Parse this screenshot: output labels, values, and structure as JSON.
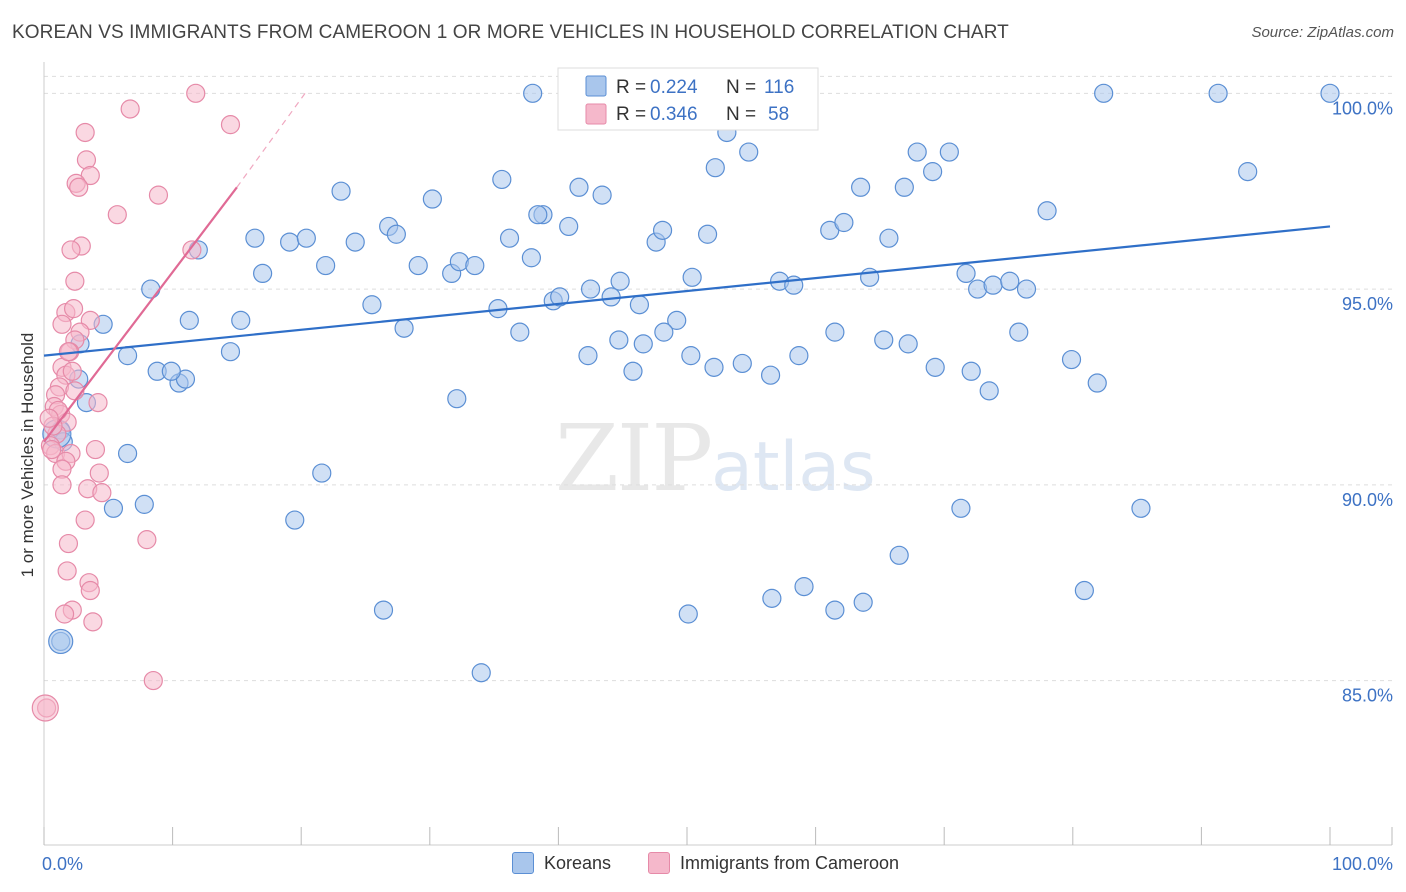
{
  "title": "KOREAN VS IMMIGRANTS FROM CAMEROON 1 OR MORE VEHICLES IN HOUSEHOLD CORRELATION CHART",
  "source": "Source: ZipAtlas.com",
  "watermark": {
    "zip": "ZIP",
    "atlas": "atlas"
  },
  "colors": {
    "blue_fill": "#a9c6ec",
    "blue_stroke": "#5b8fd4",
    "blue_line": "#2f6fc8",
    "pink_fill": "#f5b8cb",
    "pink_stroke": "#e68aa8",
    "pink_line": "#e06a95",
    "tick_text": "#3d72c4",
    "grid": "#dddddd"
  },
  "legend": {
    "rows": [
      {
        "r_label": "R =",
        "r_value": "0.224",
        "n_label": "N =",
        "n_value": "116"
      },
      {
        "r_label": "R =",
        "r_value": "0.346",
        "n_label": "N =",
        "n_value": "58"
      }
    ]
  },
  "bottom_legend": {
    "koreans": "Koreans",
    "cameroon": "Immigrants from Cameroon"
  },
  "chart_data": {
    "type": "scatter",
    "xlabel": "",
    "ylabel": "1 or more Vehicles in Household",
    "xlim": [
      0,
      100
    ],
    "ylim": [
      80.8,
      100.8
    ],
    "x_tick_labels": [
      "0.0%",
      "100.0%"
    ],
    "y_ticks": [
      85,
      90,
      95,
      100
    ],
    "y_tick_labels": [
      "85.0%",
      "90.0%",
      "95.0%",
      "100.0%"
    ],
    "grid": true,
    "series": [
      {
        "name": "Koreans",
        "color": "#a9c6ec",
        "trend": {
          "x0": 0,
          "y0": 93.3,
          "x1": 100,
          "y1": 96.6
        },
        "points": [
          [
            34,
            85.2
          ],
          [
            12,
            96.0
          ],
          [
            1.3,
            86.0
          ],
          [
            7.8,
            89.5
          ],
          [
            19.5,
            89.1
          ],
          [
            26.4,
            86.8
          ],
          [
            21.6,
            90.3
          ],
          [
            5.4,
            89.4
          ],
          [
            6.5,
            90.8
          ],
          [
            2.7,
            92.7
          ],
          [
            3.3,
            92.1
          ],
          [
            1.3,
            91.4
          ],
          [
            2.8,
            93.6
          ],
          [
            1.5,
            91.1
          ],
          [
            4.6,
            94.1
          ],
          [
            6.5,
            93.3
          ],
          [
            8.3,
            95.0
          ],
          [
            8.8,
            92.9
          ],
          [
            11.3,
            94.2
          ],
          [
            10.5,
            92.6
          ],
          [
            11.0,
            92.7
          ],
          [
            9.9,
            92.9
          ],
          [
            14.5,
            93.4
          ],
          [
            15.3,
            94.2
          ],
          [
            16.4,
            96.3
          ],
          [
            17.0,
            95.4
          ],
          [
            19.1,
            96.2
          ],
          [
            20.4,
            96.3
          ],
          [
            21.9,
            95.6
          ],
          [
            23.1,
            97.5
          ],
          [
            24.2,
            96.2
          ],
          [
            25.5,
            94.6
          ],
          [
            26.8,
            96.6
          ],
          [
            27.4,
            96.4
          ],
          [
            28.0,
            94.0
          ],
          [
            29.1,
            95.6
          ],
          [
            30.2,
            97.3
          ],
          [
            31.7,
            95.4
          ],
          [
            32.3,
            95.7
          ],
          [
            33.5,
            95.6
          ],
          [
            35.3,
            94.5
          ],
          [
            36.2,
            96.3
          ],
          [
            37.0,
            93.9
          ],
          [
            37.9,
            95.8
          ],
          [
            38.8,
            96.9
          ],
          [
            39.6,
            94.7
          ],
          [
            40.8,
            96.6
          ],
          [
            41.6,
            97.6
          ],
          [
            42.5,
            95.0
          ],
          [
            43.4,
            97.4
          ],
          [
            44.1,
            94.8
          ],
          [
            44.8,
            95.2
          ],
          [
            46.3,
            94.6
          ],
          [
            47.6,
            96.2
          ],
          [
            48.1,
            96.5
          ],
          [
            49.2,
            94.2
          ],
          [
            50.4,
            95.3
          ],
          [
            51.6,
            96.4
          ],
          [
            52.2,
            98.1
          ],
          [
            53.1,
            99.0
          ],
          [
            54.8,
            98.5
          ],
          [
            57.2,
            95.2
          ],
          [
            58.3,
            95.1
          ],
          [
            61.1,
            96.5
          ],
          [
            62.2,
            96.7
          ],
          [
            63.5,
            97.6
          ],
          [
            64.2,
            95.3
          ],
          [
            65.7,
            96.3
          ],
          [
            66.9,
            97.6
          ],
          [
            67.9,
            98.5
          ],
          [
            69.1,
            98.0
          ],
          [
            70.4,
            98.5
          ],
          [
            71.7,
            95.4
          ],
          [
            72.6,
            95.0
          ],
          [
            73.8,
            95.1
          ],
          [
            75.1,
            95.2
          ],
          [
            76.4,
            95.0
          ],
          [
            78.0,
            97.0
          ],
          [
            75.8,
            93.9
          ],
          [
            73.5,
            92.4
          ],
          [
            72.1,
            92.9
          ],
          [
            69.3,
            93.0
          ],
          [
            67.2,
            93.6
          ],
          [
            65.3,
            93.7
          ],
          [
            61.5,
            93.9
          ],
          [
            58.7,
            93.3
          ],
          [
            56.5,
            92.8
          ],
          [
            54.3,
            93.1
          ],
          [
            52.1,
            93.0
          ],
          [
            50.3,
            93.3
          ],
          [
            48.2,
            93.9
          ],
          [
            46.6,
            93.6
          ],
          [
            44.7,
            93.7
          ],
          [
            42.3,
            93.3
          ],
          [
            40.1,
            94.8
          ],
          [
            38.4,
            96.9
          ],
          [
            35.6,
            97.8
          ],
          [
            38.0,
            100.0
          ],
          [
            40.8,
            100.0
          ],
          [
            52.5,
            100.0
          ],
          [
            82.4,
            100.0
          ],
          [
            91.3,
            100.0
          ],
          [
            93.6,
            98.0
          ],
          [
            100,
            100.0
          ],
          [
            81.9,
            92.6
          ],
          [
            79.9,
            93.2
          ],
          [
            71.3,
            89.4
          ],
          [
            85.3,
            89.4
          ],
          [
            80.9,
            87.3
          ],
          [
            63.7,
            87.0
          ],
          [
            66.5,
            88.2
          ],
          [
            56.6,
            87.1
          ],
          [
            59.1,
            87.4
          ],
          [
            61.5,
            86.8
          ],
          [
            50.1,
            86.7
          ],
          [
            45.8,
            92.9
          ],
          [
            32.1,
            92.2
          ]
        ]
      },
      {
        "name": "Immigrants from Cameroon",
        "color": "#f5b8cb",
        "trend": {
          "x0": 0,
          "y0": 91.1,
          "x1": 15,
          "y1": 97.6,
          "dashed_to": {
            "x": 20.3,
            "y": 100.0
          }
        },
        "points": [
          [
            11.8,
            100.0
          ],
          [
            14.5,
            99.2
          ],
          [
            6.7,
            99.6
          ],
          [
            3.2,
            99.0
          ],
          [
            3.3,
            98.3
          ],
          [
            3.6,
            97.9
          ],
          [
            2.5,
            97.7
          ],
          [
            2.7,
            97.6
          ],
          [
            5.7,
            96.9
          ],
          [
            8.9,
            97.4
          ],
          [
            11.5,
            96.0
          ],
          [
            2.9,
            96.1
          ],
          [
            2.1,
            96.0
          ],
          [
            2.4,
            95.2
          ],
          [
            1.7,
            94.4
          ],
          [
            2.3,
            94.5
          ],
          [
            1.4,
            94.1
          ],
          [
            3.6,
            94.2
          ],
          [
            2.8,
            93.9
          ],
          [
            2.4,
            93.7
          ],
          [
            2.0,
            93.4
          ],
          [
            1.4,
            93.0
          ],
          [
            1.7,
            92.8
          ],
          [
            1.2,
            92.5
          ],
          [
            0.9,
            92.3
          ],
          [
            0.8,
            92.0
          ],
          [
            1.3,
            91.8
          ],
          [
            1.8,
            91.6
          ],
          [
            1.0,
            91.3
          ],
          [
            0.5,
            91.0
          ],
          [
            0.9,
            90.8
          ],
          [
            4.0,
            90.9
          ],
          [
            2.1,
            90.8
          ],
          [
            1.7,
            90.6
          ],
          [
            1.4,
            90.4
          ],
          [
            4.3,
            90.3
          ],
          [
            1.4,
            90.0
          ],
          [
            3.4,
            89.9
          ],
          [
            4.5,
            89.8
          ],
          [
            3.2,
            89.1
          ],
          [
            8.0,
            88.6
          ],
          [
            1.9,
            88.5
          ],
          [
            1.8,
            87.8
          ],
          [
            3.5,
            87.5
          ],
          [
            3.6,
            87.3
          ],
          [
            2.2,
            86.8
          ],
          [
            1.6,
            86.7
          ],
          [
            3.8,
            86.5
          ],
          [
            8.5,
            85.0
          ],
          [
            0.2,
            84.3
          ],
          [
            4.2,
            92.1
          ],
          [
            2.4,
            92.4
          ],
          [
            2.2,
            92.9
          ],
          [
            1.9,
            93.4
          ],
          [
            1.1,
            91.9
          ],
          [
            0.7,
            91.5
          ],
          [
            0.6,
            90.9
          ],
          [
            0.4,
            91.7
          ]
        ]
      }
    ]
  }
}
